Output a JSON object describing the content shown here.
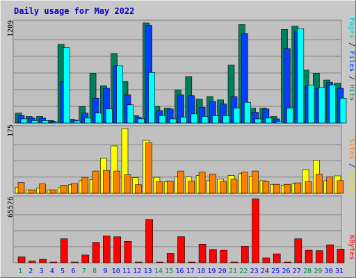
{
  "colors": {
    "pages": "#00ffff",
    "files": "#0040ff",
    "hits": "#00805a",
    "sites": "#ff8000",
    "visits": "#ffff00",
    "kbytes": "#ff0000",
    "weekday_label": "#0000ff",
    "weekend_label": "#00805a",
    "title": "#0000cc"
  },
  "chart_data": [
    {
      "type": "bar",
      "title": "Daily usage for May 2022",
      "ymax_label": "1209",
      "ylim": [
        0,
        1209
      ],
      "x": [
        1,
        2,
        3,
        4,
        5,
        6,
        7,
        8,
        9,
        10,
        11,
        12,
        13,
        14,
        15,
        16,
        17,
        18,
        19,
        20,
        21,
        22,
        23,
        24,
        25,
        26,
        27,
        28,
        29,
        30,
        31
      ],
      "weekend_days": [
        1,
        7,
        8,
        14,
        15,
        21,
        22,
        28,
        29
      ],
      "legend": [
        {
          "text": "Pages",
          "color": "#00ffff"
        },
        {
          "text": " / ",
          "color": "#000000"
        },
        {
          "text": "Files",
          "color": "#0040ff"
        },
        {
          "text": " / ",
          "color": "#000000"
        },
        {
          "text": "Hits",
          "color": "#00805a"
        }
      ],
      "series": [
        {
          "name": "Hits",
          "color": "#00805a",
          "values": [
            120,
            80,
            80,
            30,
            950,
            45,
            200,
            600,
            450,
            840,
            500,
            90,
            1209,
            200,
            180,
            400,
            560,
            290,
            320,
            280,
            700,
            1190,
            180,
            180,
            80,
            1130,
            1170,
            640,
            600,
            520,
            480
          ]
        },
        {
          "name": "Files",
          "color": "#0040ff",
          "values": [
            90,
            60,
            60,
            20,
            500,
            35,
            120,
            300,
            420,
            690,
            340,
            70,
            1180,
            150,
            170,
            340,
            330,
            190,
            260,
            230,
            320,
            1080,
            130,
            170,
            50,
            900,
            1110,
            450,
            420,
            490,
            420
          ]
        },
        {
          "name": "Pages",
          "color": "#00ffff",
          "values": [
            50,
            30,
            30,
            10,
            910,
            25,
            60,
            120,
            170,
            690,
            220,
            50,
            610,
            90,
            50,
            70,
            110,
            80,
            90,
            90,
            180,
            250,
            50,
            60,
            20,
            180,
            1140,
            460,
            430,
            460,
            300
          ]
        }
      ]
    },
    {
      "type": "bar",
      "ymax_label": "175",
      "ylim": [
        0,
        175
      ],
      "x": [
        1,
        2,
        3,
        4,
        5,
        6,
        7,
        8,
        9,
        10,
        11,
        12,
        13,
        14,
        15,
        16,
        17,
        18,
        19,
        20,
        21,
        22,
        23,
        24,
        25,
        26,
        27,
        28,
        29,
        30,
        31
      ],
      "legend": [
        {
          "text": "Sites",
          "color": "#ff8000"
        },
        {
          "text": " / ",
          "color": "#000000"
        },
        {
          "text": "Visits",
          "color": "#ffff00"
        }
      ],
      "series": [
        {
          "name": "Visits",
          "color": "#ffff00",
          "values": [
            16,
            9,
            14,
            9,
            15,
            23,
            34,
            37,
            95,
            128,
            175,
            42,
            143,
            43,
            31,
            44,
            44,
            48,
            34,
            38,
            48,
            53,
            46,
            34,
            24,
            22,
            25,
            64,
            89,
            34,
            47
          ]
        },
        {
          "name": "Sites",
          "color": "#ff8000",
          "values": [
            29,
            9,
            25,
            9,
            22,
            26,
            43,
            60,
            62,
            60,
            50,
            23,
            136,
            31,
            33,
            60,
            33,
            57,
            52,
            32,
            38,
            57,
            60,
            31,
            24,
            24,
            28,
            31,
            52,
            44,
            34
          ]
        }
      ]
    },
    {
      "type": "bar",
      "ymax_label": "65576",
      "ylim": [
        0,
        65576
      ],
      "x": [
        1,
        2,
        3,
        4,
        5,
        6,
        7,
        8,
        9,
        10,
        11,
        12,
        13,
        14,
        15,
        16,
        17,
        18,
        19,
        20,
        21,
        22,
        23,
        24,
        25,
        26,
        27,
        28,
        29,
        30,
        31
      ],
      "legend": [
        {
          "text": "KBytes",
          "color": "#ff0000"
        }
      ],
      "series": [
        {
          "name": "KBytes",
          "color": "#ff0000",
          "values": [
            5900,
            1700,
            3500,
            0,
            24600,
            0,
            7900,
            20900,
            27500,
            26600,
            21900,
            0,
            44400,
            0,
            9600,
            26700,
            0,
            19000,
            13600,
            12800,
            0,
            16800,
            65576,
            5000,
            9100,
            0,
            24600,
            12800,
            12300,
            18400,
            14000
          ]
        }
      ]
    }
  ]
}
